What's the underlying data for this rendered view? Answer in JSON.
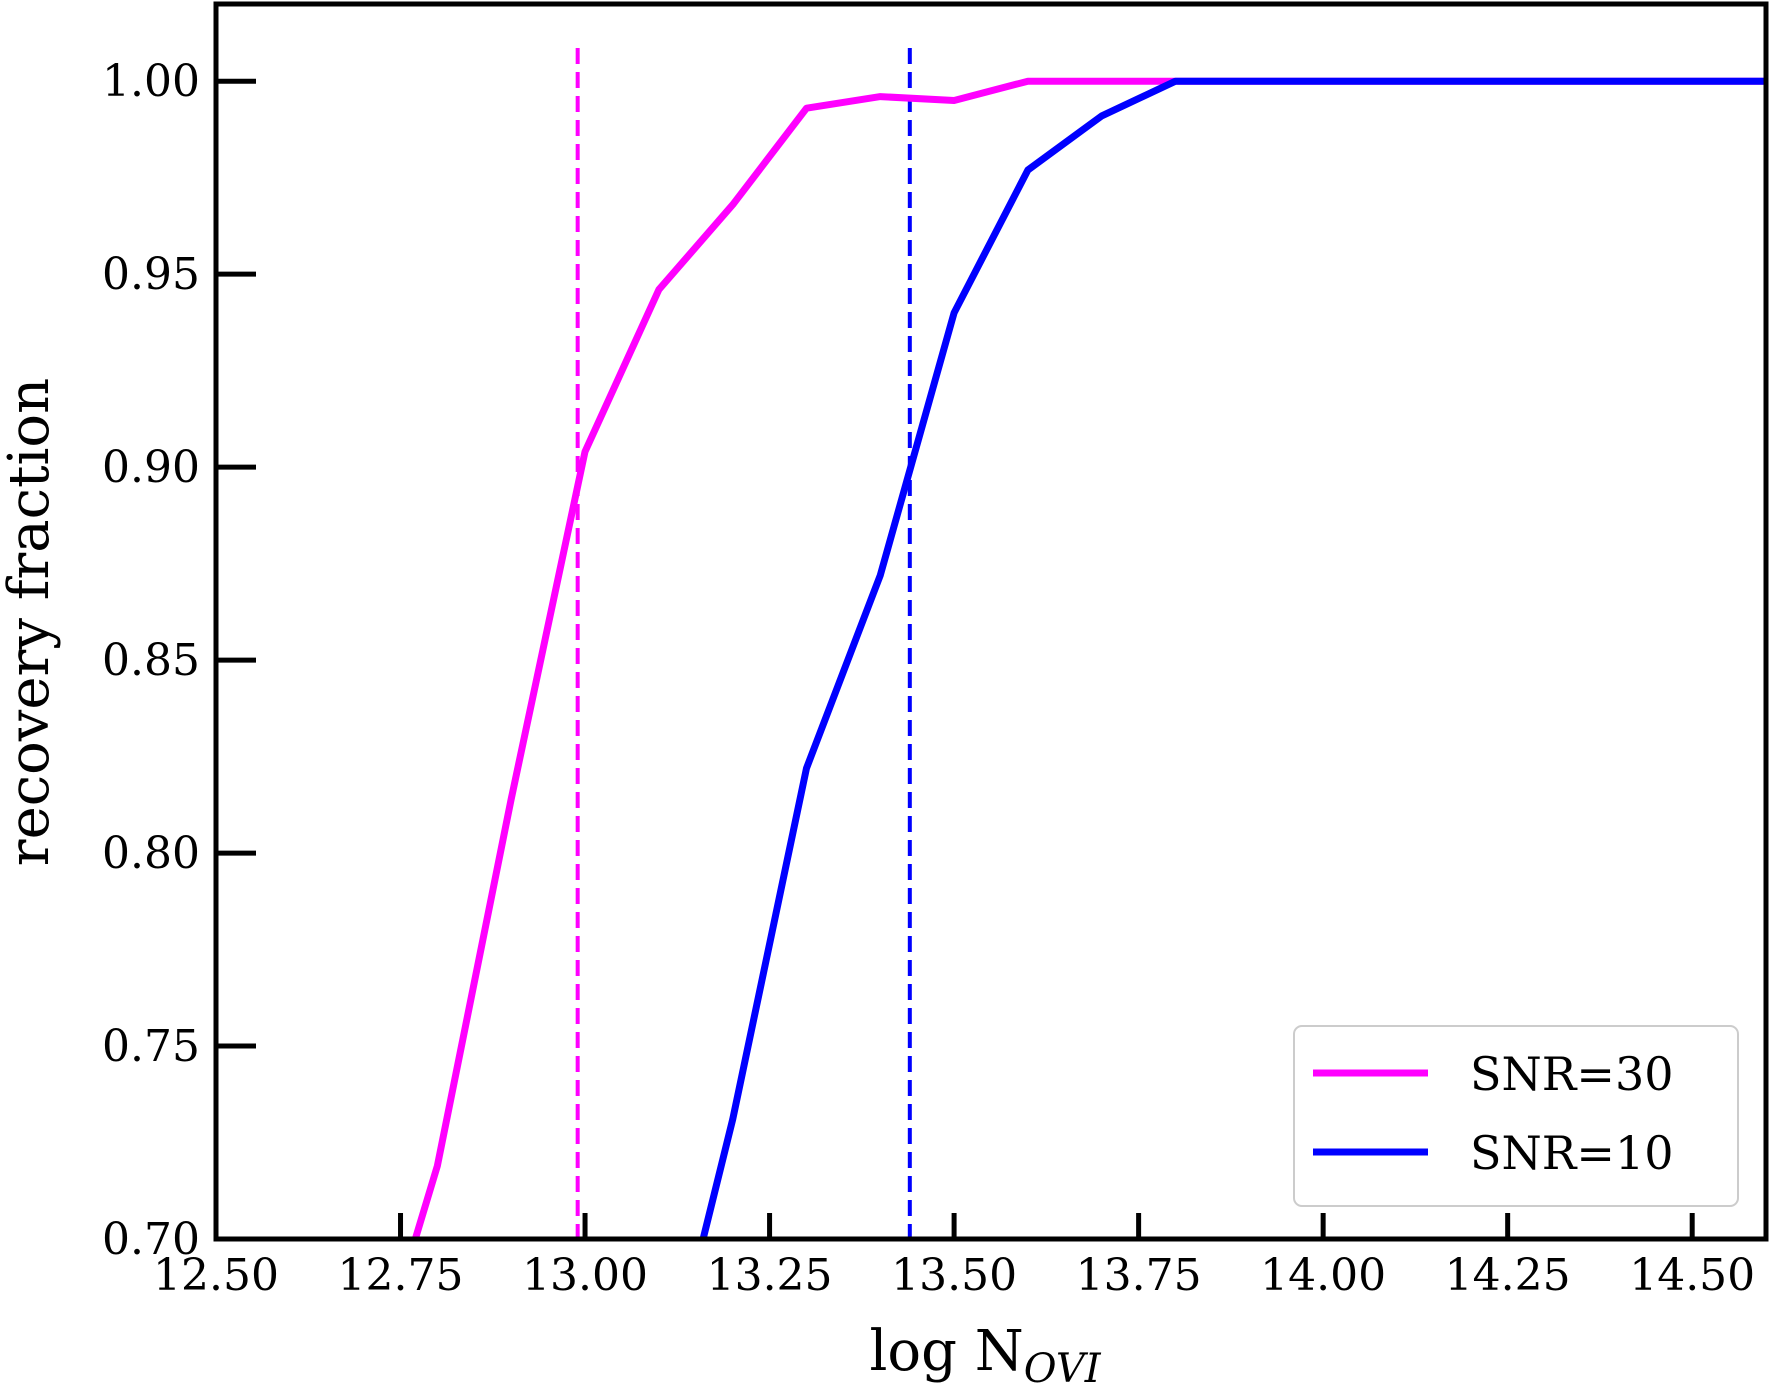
{
  "chart_data": {
    "type": "line",
    "title": "",
    "xlabel": "log N",
    "xlabel_subscript": "OVI",
    "ylabel": "recovery fraction",
    "xlim": [
      12.5,
      14.6
    ],
    "ylim": [
      0.7,
      1.02
    ],
    "x_ticks": [
      12.5,
      12.75,
      13.0,
      13.25,
      13.5,
      13.75,
      14.0,
      14.25,
      14.5
    ],
    "x_tick_labels": [
      "12.50",
      "12.75",
      "13.00",
      "13.25",
      "13.50",
      "13.75",
      "14.00",
      "14.25",
      "14.50"
    ],
    "y_ticks": [
      0.7,
      0.75,
      0.8,
      0.85,
      0.9,
      0.95,
      1.0
    ],
    "y_tick_labels": [
      "0.70",
      "0.75",
      "0.80",
      "0.85",
      "0.90",
      "0.95",
      "1.00"
    ],
    "grid": false,
    "legend_position": "bottom-right",
    "series": [
      {
        "name": "SNR=30",
        "color": "#ff00ff",
        "x": [
          12.77,
          12.8,
          12.9,
          13.0,
          13.1,
          13.2,
          13.3,
          13.4,
          13.5,
          13.6,
          13.7,
          13.8,
          14.6
        ],
        "y": [
          0.7,
          0.719,
          0.814,
          0.904,
          0.946,
          0.968,
          0.993,
          0.996,
          0.995,
          1.0,
          1.0,
          1.0,
          1.0
        ]
      },
      {
        "name": "SNR=10",
        "color": "#0000ff",
        "x": [
          13.16,
          13.2,
          13.3,
          13.4,
          13.5,
          13.6,
          13.7,
          13.8,
          14.6
        ],
        "y": [
          0.7,
          0.731,
          0.822,
          0.872,
          0.94,
          0.977,
          0.991,
          1.0,
          1.0
        ]
      }
    ],
    "threshold_lines": [
      {
        "x": 12.99,
        "color": "#ff00ff",
        "style": "dashed"
      },
      {
        "x": 13.44,
        "color": "#0000ff",
        "style": "dashed"
      }
    ]
  }
}
